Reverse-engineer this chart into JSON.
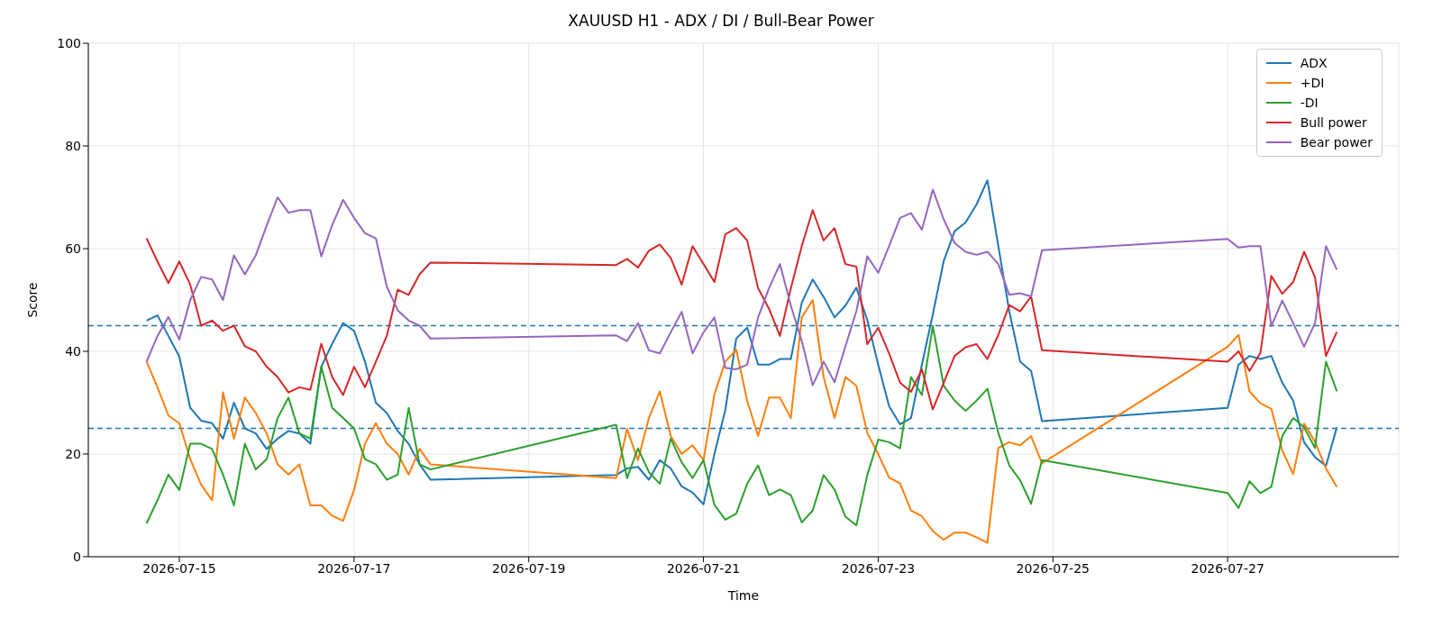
{
  "chart_data": {
    "type": "line",
    "title": "XAUUSD H1 - ADX / DI / Bull-Bear Power",
    "xlabel": "Time",
    "ylabel": "Score",
    "x": [
      "2026-07-14T15:00",
      "2026-07-14T18:00",
      "2026-07-14T21:00",
      "2026-07-15T00:00",
      "2026-07-15T03:00",
      "2026-07-15T06:00",
      "2026-07-15T09:00",
      "2026-07-15T12:00",
      "2026-07-15T15:00",
      "2026-07-15T18:00",
      "2026-07-15T21:00",
      "2026-07-16T00:00",
      "2026-07-16T03:00",
      "2026-07-16T06:00",
      "2026-07-16T09:00",
      "2026-07-16T12:00",
      "2026-07-16T15:00",
      "2026-07-16T18:00",
      "2026-07-16T21:00",
      "2026-07-17T00:00",
      "2026-07-17T03:00",
      "2026-07-17T06:00",
      "2026-07-17T09:00",
      "2026-07-17T12:00",
      "2026-07-17T15:00",
      "2026-07-17T18:00",
      "2026-07-17T21:00",
      "2026-07-20T00:00",
      "2026-07-20T03:00",
      "2026-07-20T06:00",
      "2026-07-20T09:00",
      "2026-07-20T12:00",
      "2026-07-20T15:00",
      "2026-07-20T18:00",
      "2026-07-20T21:00",
      "2026-07-21T00:00",
      "2026-07-21T03:00",
      "2026-07-21T06:00",
      "2026-07-21T09:00",
      "2026-07-21T12:00",
      "2026-07-21T15:00",
      "2026-07-21T18:00",
      "2026-07-21T21:00",
      "2026-07-22T00:00",
      "2026-07-22T03:00",
      "2026-07-22T06:00",
      "2026-07-22T09:00",
      "2026-07-22T12:00",
      "2026-07-22T15:00",
      "2026-07-22T18:00",
      "2026-07-22T21:00",
      "2026-07-23T00:00",
      "2026-07-23T03:00",
      "2026-07-23T06:00",
      "2026-07-23T09:00",
      "2026-07-23T12:00",
      "2026-07-23T15:00",
      "2026-07-23T18:00",
      "2026-07-23T21:00",
      "2026-07-24T00:00",
      "2026-07-24T03:00",
      "2026-07-24T06:00",
      "2026-07-24T09:00",
      "2026-07-24T12:00",
      "2026-07-24T15:00",
      "2026-07-24T18:00",
      "2026-07-24T21:00",
      "2026-07-27T00:00",
      "2026-07-27T03:00",
      "2026-07-27T06:00",
      "2026-07-27T09:00",
      "2026-07-27T12:00",
      "2026-07-27T15:00",
      "2026-07-27T18:00",
      "2026-07-27T21:00",
      "2026-07-28T00:00",
      "2026-07-28T03:00",
      "2026-07-28T06:00"
    ],
    "series": [
      {
        "name": "ADX",
        "color": "#1f77b4",
        "values": [
          46,
          47,
          43,
          39,
          29,
          26.5,
          26,
          23,
          30,
          25,
          24,
          21,
          23,
          24.5,
          24,
          22,
          37,
          41.5,
          45.5,
          44,
          38,
          30,
          28,
          24.5,
          22,
          18,
          15,
          15.9,
          17.2,
          17.5,
          15,
          18.8,
          17.2,
          13.7,
          12.5,
          10.2,
          20,
          28.6,
          42.5,
          44.6,
          37.4,
          37.4,
          38.5,
          38.5,
          49.5,
          54,
          50.6,
          46.6,
          48.9,
          52.4,
          46.1,
          37.4,
          29.3,
          25.8,
          27,
          37.4,
          47.2,
          57.6,
          63.4,
          65.1,
          68.6,
          73.3,
          60.5,
          47.8,
          38,
          36.2,
          26.4,
          29,
          37.4,
          39.1,
          38.5,
          39.1,
          33.9,
          30.4,
          22.3,
          19.4,
          17.7,
          25.2
        ]
      },
      {
        "name": "+DI",
        "color": "#ff7f0e",
        "values": [
          38,
          33,
          27.5,
          26,
          19,
          14,
          11,
          32,
          23,
          31,
          28,
          24,
          18,
          16,
          18,
          10,
          10,
          8,
          7,
          13,
          22,
          26,
          22,
          20,
          16,
          21,
          18,
          15.3,
          24.9,
          18.8,
          27,
          32.2,
          23.5,
          20,
          21.7,
          18.8,
          31.6,
          38,
          40.3,
          30.4,
          23.5,
          31,
          31,
          27,
          46.6,
          50,
          35,
          27,
          35,
          33.3,
          24.1,
          20,
          15.4,
          14.3,
          9,
          7.9,
          5,
          3.3,
          4.7,
          4.7,
          3.8,
          2.7,
          21.2,
          22.3,
          21.7,
          23.5,
          18.2,
          40.9,
          43.2,
          32.2,
          29.9,
          28.8,
          20.7,
          16.1,
          25.9,
          22.4,
          17.2,
          13.6
        ]
      },
      {
        "name": "-DI",
        "color": "#2ca02c",
        "values": [
          6.5,
          11,
          16,
          13,
          22,
          22,
          21,
          16,
          10,
          22,
          17,
          19,
          27,
          31,
          24,
          23,
          37,
          29,
          27,
          25,
          19,
          18,
          15,
          16,
          29,
          18,
          17,
          25.7,
          15.3,
          21.1,
          16.5,
          14.2,
          23,
          18.4,
          15.3,
          18.8,
          10.1,
          7.2,
          8.4,
          14.2,
          17.8,
          12,
          13.1,
          12,
          6.7,
          9,
          15.9,
          13.1,
          7.8,
          6.1,
          15.9,
          22.8,
          22.3,
          21.1,
          35,
          31.5,
          44.9,
          33.3,
          30.4,
          28.4,
          30.4,
          32.7,
          24.1,
          17.8,
          14.9,
          10.3,
          18.8,
          12.4,
          9.5,
          14.7,
          12.4,
          13.6,
          23.5,
          27,
          25.2,
          21.2,
          38,
          32.2
        ]
      },
      {
        "name": "Bull power",
        "color": "#d62728",
        "values": [
          62,
          57.5,
          53.3,
          57.5,
          53,
          45,
          46,
          44,
          45,
          41,
          40,
          37,
          35,
          32,
          33,
          32.5,
          41.5,
          35,
          31.5,
          37,
          33,
          38,
          43,
          52,
          51,
          55,
          57.3,
          56.8,
          58,
          56.3,
          59.6,
          60.8,
          58.2,
          53,
          60.5,
          57,
          53.5,
          62.8,
          64,
          61.6,
          52.3,
          48.3,
          43,
          52.3,
          60.5,
          67.5,
          61.6,
          64,
          57,
          56.5,
          41.4,
          44.6,
          39.6,
          33.9,
          32.1,
          36.5,
          28.7,
          33.9,
          39.1,
          40.8,
          41.4,
          38.5,
          43.2,
          49,
          47.8,
          50.7,
          40.2,
          38,
          40,
          36.2,
          39.7,
          54.7,
          51.2,
          53.5,
          59.4,
          54.4,
          39.1,
          43.8
        ]
      },
      {
        "name": "Bear power",
        "color": "#9467bd",
        "values": [
          38,
          43,
          46.7,
          42.3,
          50,
          54.5,
          54,
          50,
          58.7,
          55,
          58.7,
          64.5,
          70,
          67,
          67.5,
          67.5,
          58.5,
          64.6,
          69.5,
          66,
          63,
          62,
          52.6,
          48,
          46,
          45,
          42.5,
          43.1,
          42,
          45.5,
          40.2,
          39.6,
          43.7,
          47.7,
          39.6,
          43.7,
          46.6,
          36.8,
          36.5,
          37.4,
          46.6,
          52.3,
          57,
          48.9,
          42,
          33.4,
          38,
          34,
          41,
          47.8,
          58.5,
          55.3,
          60.5,
          66,
          66.9,
          63.7,
          71.5,
          65.7,
          61.1,
          59.4,
          58.8,
          59.4,
          57,
          51,
          51.3,
          50.7,
          59.7,
          61.9,
          60.2,
          60.5,
          60.5,
          44.9,
          49.9,
          45.5,
          40.9,
          45.5,
          60.5,
          55.9
        ]
      }
    ],
    "xlim": [
      "2026-07-13T23:00",
      "2026-07-28T23:00"
    ],
    "xticks": [
      "2026-07-15",
      "2026-07-17",
      "2026-07-19",
      "2026-07-21",
      "2026-07-23",
      "2026-07-25",
      "2026-07-27"
    ],
    "ylim": [
      0,
      100
    ],
    "yticks": [
      0,
      20,
      40,
      60,
      80,
      100
    ],
    "ref_lines": [
      {
        "axis": "y",
        "value": 45,
        "color": "#1f77b4",
        "line_style": "dashed"
      },
      {
        "axis": "y",
        "value": 25,
        "color": "#1f77b4",
        "line_style": "dashed"
      }
    ],
    "grid": true,
    "legend": "top right",
    "marker": "none",
    "line_style": "solid"
  }
}
